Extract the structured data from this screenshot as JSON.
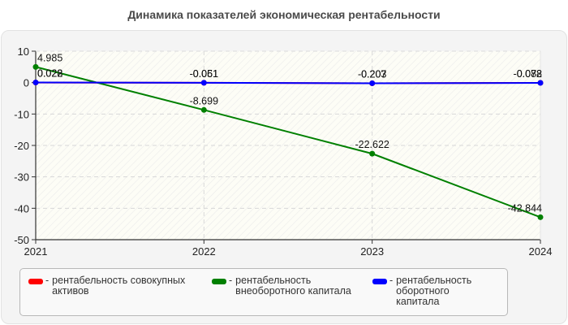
{
  "title": "Динамика показателей экономическая рентабельности",
  "legend": [
    {
      "label": "рентабельность совокупных активов",
      "line1": "рентабельность совокупных",
      "line2": "активов",
      "color": "#ff0000"
    },
    {
      "label": "рентабельность внеоборотного капитала",
      "line1": "рентабельность",
      "line2": "внеоборотного капитала",
      "color": "#008000"
    },
    {
      "label": "рентабельность оборотного капитала",
      "line1": "рентабельность оборотного",
      "line2": "капитала",
      "color": "#0000ff"
    }
  ],
  "chart_data": {
    "type": "line",
    "title": "Динамика показателей экономическая рентабельности",
    "xlabel": "",
    "ylabel": "",
    "categories": [
      "2021",
      "2022",
      "2023",
      "2024"
    ],
    "ylim": [
      -50,
      10
    ],
    "yticks": [
      10,
      0,
      -10,
      -20,
      -30,
      -40,
      -50
    ],
    "grid": true,
    "legend_position": "bottom",
    "series": [
      {
        "name": "рентабельность совокупных активов",
        "color": "#ff0000",
        "values": [
          0.022,
          -0.061,
          -0.207,
          -0.072
        ]
      },
      {
        "name": "рентабельность внеоборотного капитала",
        "color": "#008000",
        "values": [
          4.985,
          -8.699,
          -22.622,
          -42.844
        ]
      },
      {
        "name": "рентабельность оборотного капитала",
        "color": "#0000ff",
        "values": [
          0.028,
          -0.051,
          -0.203,
          -0.088
        ]
      }
    ]
  }
}
